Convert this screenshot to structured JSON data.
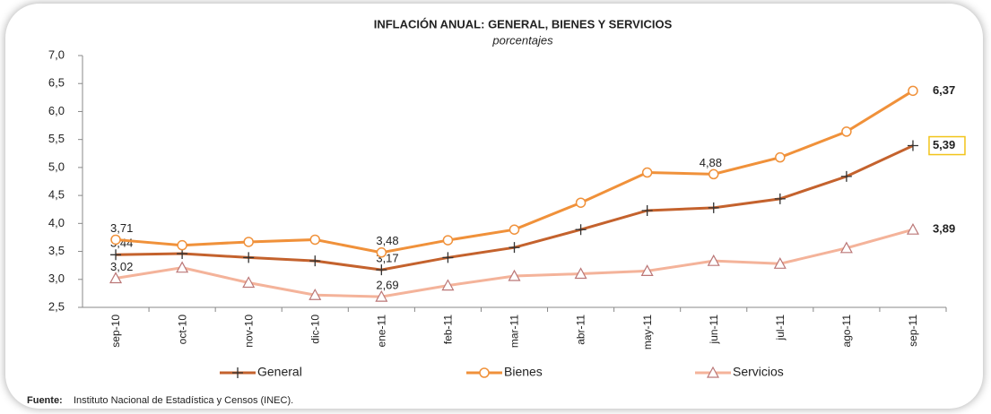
{
  "chart_data": {
    "type": "line",
    "title": "INFLACIÓN ANUAL: GENERAL, BIENES Y SERVICIOS",
    "subtitle": "porcentajes",
    "categories": [
      "sep-10",
      "oct-10",
      "nov-10",
      "dic-10",
      "ene-11",
      "feb-11",
      "mar-11",
      "abr-11",
      "may-11",
      "jun-11",
      "jul-11",
      "ago-11",
      "sep-11"
    ],
    "ylim": [
      2.5,
      7.0
    ],
    "yticks": [
      {
        "value": 2.5,
        "label": "2,5"
      },
      {
        "value": 3.0,
        "label": "3,0"
      },
      {
        "value": 3.5,
        "label": "3,5"
      },
      {
        "value": 4.0,
        "label": "4,0"
      },
      {
        "value": 4.5,
        "label": "4,5"
      },
      {
        "value": 5.0,
        "label": "5,0"
      },
      {
        "value": 5.5,
        "label": "5,5"
      },
      {
        "value": 6.0,
        "label": "6,0"
      },
      {
        "value": 6.5,
        "label": "6,5"
      },
      {
        "value": 7.0,
        "label": "7,0"
      }
    ],
    "grid": false,
    "series": [
      {
        "name": "General",
        "color": "#c4622d",
        "marker": "plus",
        "label_box_color": "#f2c41a",
        "values": [
          3.44,
          3.46,
          3.39,
          3.33,
          3.17,
          3.39,
          3.57,
          3.89,
          4.23,
          4.28,
          4.44,
          4.84,
          5.39
        ],
        "value_labels": [
          "3,44",
          null,
          null,
          null,
          "3,17",
          null,
          null,
          null,
          null,
          null,
          null,
          null,
          "5,39"
        ]
      },
      {
        "name": "Bienes",
        "color": "#f0913a",
        "marker": "circle",
        "values": [
          3.71,
          3.61,
          3.67,
          3.71,
          3.48,
          3.7,
          3.89,
          4.37,
          4.91,
          4.88,
          5.18,
          5.64,
          6.37
        ],
        "value_labels": [
          "3,71",
          null,
          null,
          null,
          "3,48",
          null,
          null,
          null,
          null,
          "4,88",
          null,
          null,
          "6,37"
        ]
      },
      {
        "name": "Servicios",
        "color": "#f4b39a",
        "marker": "triangle",
        "values": [
          3.02,
          3.21,
          2.94,
          2.72,
          2.69,
          2.89,
          3.06,
          3.1,
          3.15,
          3.33,
          3.28,
          3.56,
          3.89
        ],
        "value_labels": [
          "3,02",
          null,
          null,
          null,
          "2,69",
          null,
          null,
          null,
          null,
          null,
          null,
          null,
          "3,89"
        ]
      }
    ],
    "source": {
      "label": "Fuente:",
      "text": "Instituto  Nacional de Estadística y Censos (INEC)."
    }
  }
}
